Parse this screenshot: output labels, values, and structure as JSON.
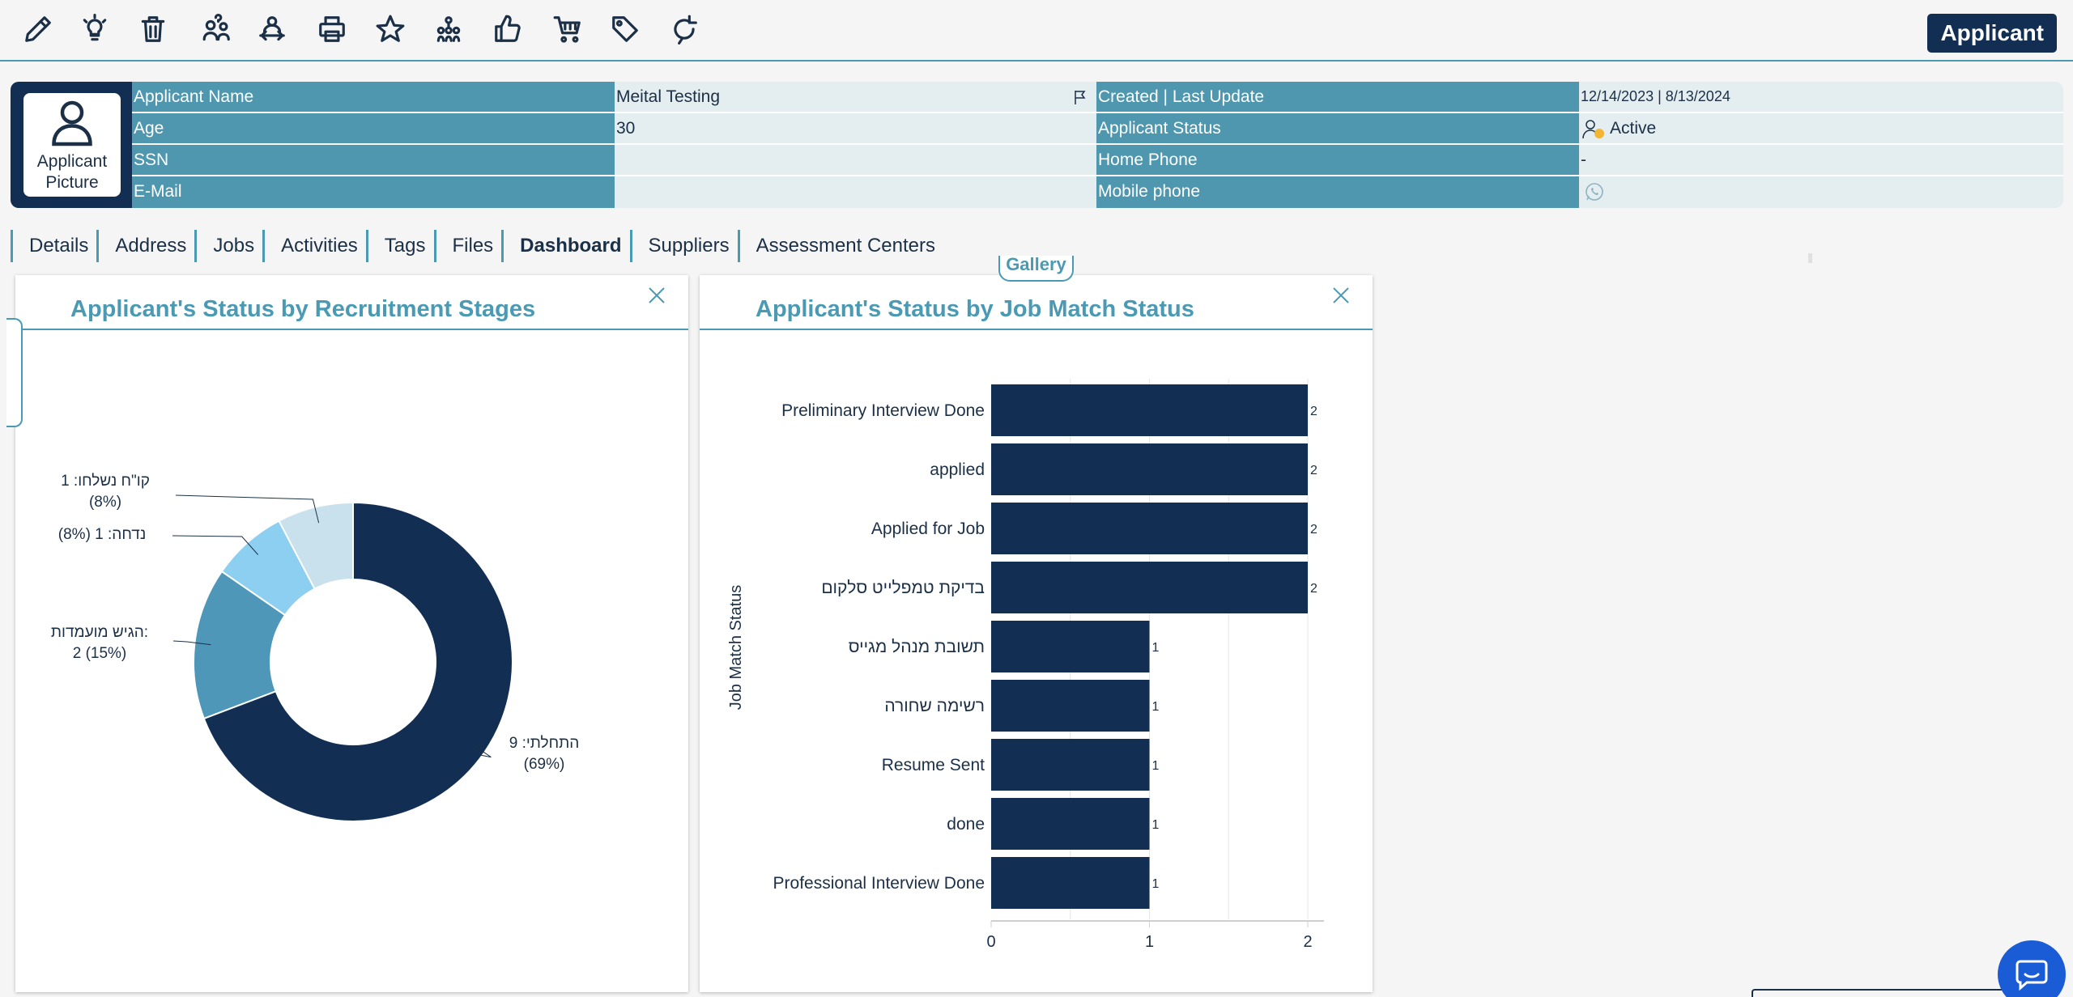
{
  "toolbar": {
    "icons": [
      "pencil-icon",
      "lightbulb-icon",
      "trash-icon",
      "users-question-icon",
      "transfer-icon",
      "printer-icon",
      "star-icon",
      "hierarchy-icon",
      "thumbs-up-icon",
      "cart-icon",
      "tag-icon",
      "refresh-icon"
    ],
    "applicant_button": "Applicant"
  },
  "header": {
    "picture_label": "Applicant Picture",
    "rows": [
      {
        "label1": "Applicant Name",
        "value1": "Meital Testing",
        "label2": "Created | Last Update",
        "value2": "12/14/2023  |  8/13/2024"
      },
      {
        "label1": "Age",
        "value1": "30",
        "label2": "Applicant Status",
        "value2": "Active"
      },
      {
        "label1": "SSN",
        "value1": "",
        "label2": "Home Phone",
        "value2": "-"
      },
      {
        "label1": "E-Mail",
        "value1": "",
        "label2": "Mobile phone",
        "value2": ""
      }
    ]
  },
  "tabs": [
    "Details",
    "Address",
    "Jobs",
    "Activities",
    "Tags",
    "Files",
    "Dashboard",
    "Suppliers",
    "Assessment Centers"
  ],
  "active_tab": "Dashboard",
  "gallery_label": "Gallery",
  "panels": {
    "recruitment_title": "Applicant's Status by Recruitment Stages",
    "jobmatch_title": "Applicant's Status by Job Match Status"
  },
  "chart_data": [
    {
      "type": "pie",
      "title": "Applicant's Status by Recruitment Stages",
      "categories": [
        "התחלתי",
        "הגיש מועמדות",
        "נדחה",
        "קו\"ח נשלחו"
      ],
      "values": [
        9,
        2,
        1,
        1
      ],
      "labels": [
        "התחלתי: 9 (69%)",
        "הגיש מועמדות: 2 (15%)",
        "נדחה: 1 (8%)",
        "קו\"ח נשלחו: 1 (8%)"
      ],
      "colors": [
        "#122f53",
        "#4e97b8",
        "#8dcff0",
        "#c9e1ec"
      ]
    },
    {
      "type": "bar",
      "orientation": "horizontal",
      "title": "Applicant's Status by Job Match Status",
      "ylabel": "Job Match Status",
      "categories": [
        "Preliminary Interview Done",
        "applied",
        "Applied for Job",
        "בדיקת טמפלייט סלקום",
        "תשובת מנהל מגייס",
        "רשימה שחורה",
        "Resume Sent",
        "done",
        "Professional Interview Done"
      ],
      "values": [
        2,
        2,
        2,
        2,
        1,
        1,
        1,
        1,
        1
      ],
      "xlim": [
        0,
        2
      ],
      "xticks": [
        "0",
        "1",
        "2"
      ],
      "color": "#122f53"
    }
  ]
}
